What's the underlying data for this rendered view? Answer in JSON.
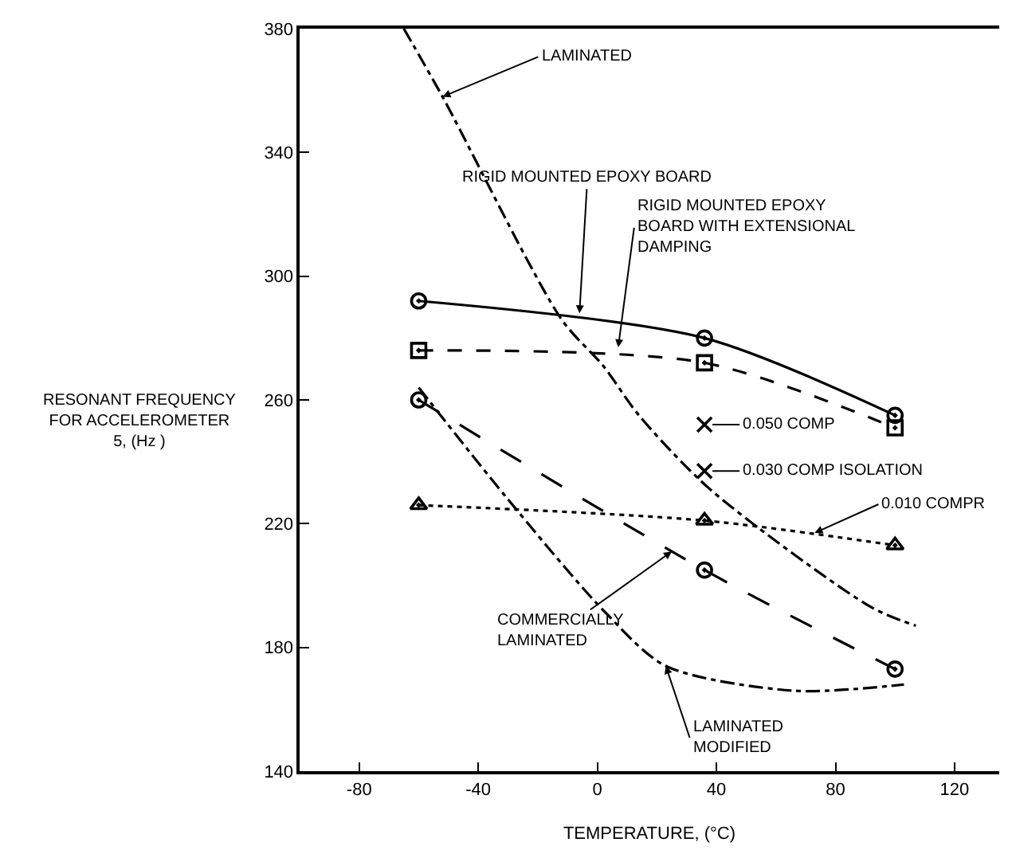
{
  "chart_data": {
    "type": "line",
    "xlabel": "TEMPERATURE, (°C)",
    "ylabel": "RESONANT FREQUENCY\nFOR ACCELEROMETER\n5, (Hz )",
    "xlim": [
      -100,
      135
    ],
    "xticks": [
      -80,
      -40,
      0,
      40,
      80,
      120
    ],
    "ylim": [
      140,
      380
    ],
    "yticks": [
      140,
      180,
      220,
      260,
      300,
      340,
      380
    ],
    "series": [
      {
        "color": "#000000",
        "x": [
          -60,
          36,
          100
        ],
        "values": [
          292,
          280,
          255
        ],
        "marker": "circle",
        "line_style": "solid"
      },
      {
        "color": "#000000",
        "x": [
          -60,
          36,
          100
        ],
        "values": [
          276,
          272,
          251
        ],
        "marker": "square",
        "line_style": "dashed"
      },
      {
        "color": "#000000",
        "x": [
          -60,
          36,
          100
        ],
        "values": [
          260,
          205,
          173
        ],
        "marker": "circle",
        "line_style": "longdash"
      },
      {
        "color": "#000000",
        "x": [
          -60,
          36,
          100
        ],
        "values": [
          226,
          221,
          213
        ],
        "marker": "triangle",
        "line_style": "dotted"
      },
      {
        "color": "#000000",
        "x": [
          -65,
          -52,
          -12,
          2,
          14,
          38,
          92,
          107
        ],
        "values": [
          380,
          358,
          286,
          271,
          255,
          231,
          193,
          187
        ],
        "marker": "none",
        "line_style": "dashdot"
      },
      {
        "color": "#000000",
        "x": [
          -60,
          -31,
          2,
          23,
          66,
          103
        ],
        "values": [
          264,
          229,
          192,
          174,
          166,
          168
        ],
        "marker": "none",
        "line_style": "dashdot"
      },
      {
        "type": "scatter",
        "color": "#000000",
        "x": [
          36,
          36
        ],
        "values": [
          252,
          237
        ],
        "marker": "cross"
      }
    ],
    "annotations": [
      {
        "text": "LAMINATED",
        "x": -52,
        "y": 358
      },
      {
        "text": "RIGID MOUNTED EPOXY BOARD",
        "x": -6,
        "y": 288
      },
      {
        "text": "RIGID MOUNTED EPOXY\nBOARD WITH EXTENSIONAL\nDAMPING",
        "x": 7,
        "y": 277
      },
      {
        "text": "0.050 COMP",
        "x": 36,
        "y": 252
      },
      {
        "text": "0.030 COMP ISOLATION",
        "x": 36,
        "y": 237
      },
      {
        "text": "0.010 COMPR",
        "x": 73,
        "y": 217
      },
      {
        "text": "COMMERCIALLY\nLAMINATED",
        "x": 25,
        "y": 211
      },
      {
        "text": "LAMINATED\nMODIFIED",
        "x": 23,
        "y": 174
      }
    ]
  }
}
